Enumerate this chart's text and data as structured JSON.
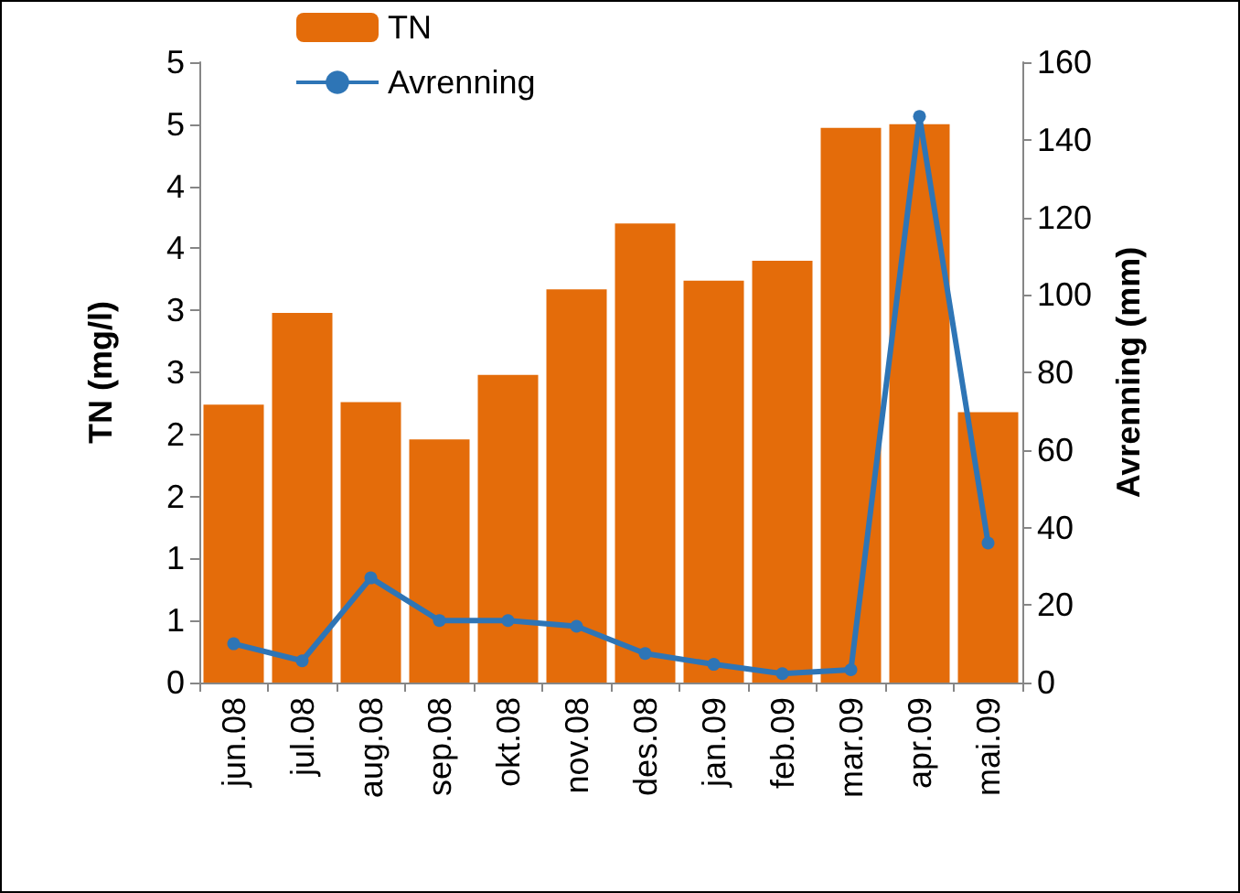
{
  "chart_data": {
    "type": "bar",
    "categories": [
      "jun.08",
      "jul.08",
      "aug.08",
      "sep.08",
      "okt.08",
      "nov.08",
      "des.08",
      "jan.09",
      "feb.09",
      "mar.09",
      "apr.09",
      "mai.09"
    ],
    "ylabel": "TN (mg/l)",
    "y2label": "Avrenning (mm)",
    "ylim": [
      0,
      5
    ],
    "yticks": [
      0,
      {
        "value": 0.5,
        "label": "1"
      },
      1,
      {
        "value": 1.5,
        "label": "2"
      },
      2,
      {
        "value": 2.5,
        "label": "3"
      },
      3,
      {
        "value": 3.5,
        "label": "4"
      },
      4,
      {
        "value": 4.5,
        "label": "5"
      },
      5
    ],
    "y2lim": [
      0,
      160
    ],
    "y2ticks": [
      0,
      20,
      40,
      60,
      80,
      100,
      120,
      140,
      160
    ],
    "series": [
      {
        "name": "TN",
        "color": "#e46c0a",
        "values": [
          2.24,
          2.98,
          2.26,
          1.96,
          2.48,
          3.17,
          3.7,
          3.24,
          3.4,
          4.47,
          4.5,
          2.18
        ]
      },
      {
        "name": "Avrenning",
        "type": "line",
        "axis": "y2",
        "color": "#2e75b6",
        "marker": "circle",
        "values": [
          10,
          5.6,
          27,
          16,
          16,
          14.5,
          7.5,
          4.7,
          2.3,
          3.3,
          146,
          36
        ]
      }
    ],
    "legend": "top left",
    "grid": false
  }
}
